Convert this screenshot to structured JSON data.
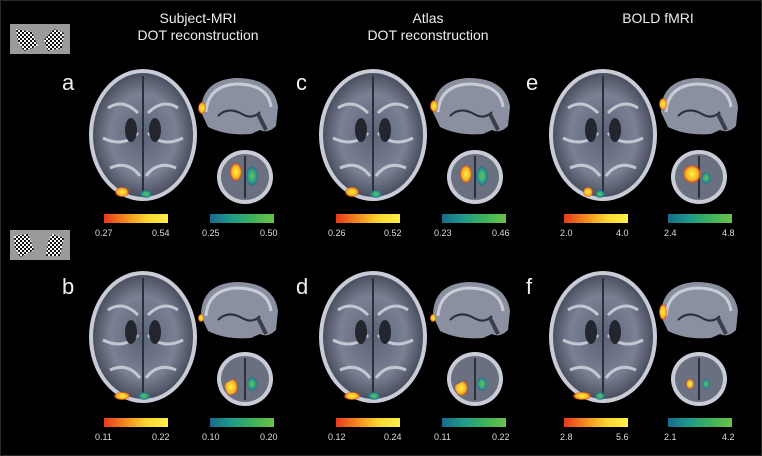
{
  "columns": [
    {
      "title_line1": "Subject-MRI",
      "title_line2": "DOT reconstruction"
    },
    {
      "title_line1": "Atlas",
      "title_line2": "DOT reconstruction"
    },
    {
      "title_line1": "BOLD fMRI",
      "title_line2": ""
    }
  ],
  "panels": {
    "a": {
      "label": "a",
      "warm_min": "0.27",
      "warm_max": "0.54",
      "cool_min": "0.25",
      "cool_max": "0.50"
    },
    "b": {
      "label": "b",
      "warm_min": "0.11",
      "warm_max": "0.22",
      "cool_min": "0.10",
      "cool_max": "0.20"
    },
    "c": {
      "label": "c",
      "warm_min": "0.26",
      "warm_max": "0.52",
      "cool_min": "0.23",
      "cool_max": "0.46"
    },
    "d": {
      "label": "d",
      "warm_min": "0.12",
      "warm_max": "0.24",
      "cool_min": "0.11",
      "cool_max": "0.22"
    },
    "e": {
      "label": "e",
      "warm_min": "2.0",
      "warm_max": "4.0",
      "cool_min": "2.4",
      "cool_max": "4.8"
    },
    "f": {
      "label": "f",
      "warm_min": "2.8",
      "warm_max": "5.6",
      "cool_min": "2.1",
      "cool_max": "4.2"
    }
  },
  "colors": {
    "warm_map": "#f7b31f",
    "cool_map": "#2aa38a",
    "background": "#000000"
  }
}
